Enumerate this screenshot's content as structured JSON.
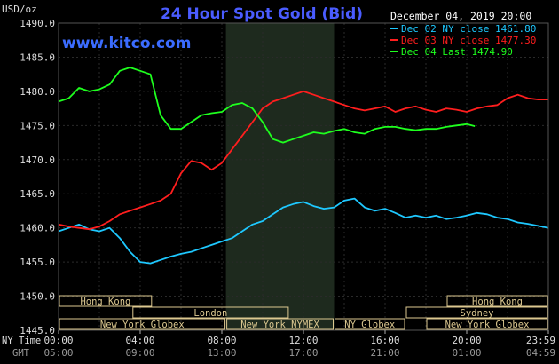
{
  "chart_data": {
    "type": "line",
    "title": "24 Hour Spot Gold (Bid)",
    "watermark": "www.kitco.com",
    "unit_label": "USD/oz",
    "date_label": "December 04, 2019 20:00",
    "ylim": [
      1445.0,
      1490.0
    ],
    "y_ticks": [
      "1490.0",
      "1485.0",
      "1480.0",
      "1475.0",
      "1470.0",
      "1465.0",
      "1460.0",
      "1455.0",
      "1450.0",
      "1445.0"
    ],
    "x_range_hours": [
      0,
      24
    ],
    "x_ticks": [
      {
        "h": 0,
        "ny": "00:00",
        "gmt": "05:00"
      },
      {
        "h": 4,
        "ny": "04:00",
        "gmt": "09:00"
      },
      {
        "h": 8,
        "ny": "08:00",
        "gmt": "13:00"
      },
      {
        "h": 12,
        "ny": "12:00",
        "gmt": "17:00"
      },
      {
        "h": 16,
        "ny": "16:00",
        "gmt": "21:00"
      },
      {
        "h": 20,
        "ny": "20:00",
        "gmt": "01:00"
      },
      {
        "h": 24,
        "ny": "23:59",
        "gmt": "04:59"
      }
    ],
    "x_row_labels": {
      "ny": "NY Time",
      "gmt": "GMT"
    },
    "shaded_session_hours": [
      8.2,
      13.5
    ],
    "market_sessions": [
      {
        "label": "Hong Kong",
        "start": 0,
        "end": 4.6,
        "row": 0
      },
      {
        "label": "London",
        "start": 3.6,
        "end": 11.3,
        "row": 1
      },
      {
        "label": "New York Globex",
        "start": 0,
        "end": 8.2,
        "row": 2
      },
      {
        "label": "New York NYMEX",
        "start": 8.2,
        "end": 13.5,
        "row": 2
      },
      {
        "label": "NY Globex",
        "start": 13.5,
        "end": 17.0,
        "row": 2
      },
      {
        "label": "Hong Kong",
        "start": 19.0,
        "end": 24,
        "row": 0
      },
      {
        "label": "Sydney",
        "start": 17.0,
        "end": 24,
        "row": 1
      },
      {
        "label": "New York Globex",
        "start": 18.0,
        "end": 24,
        "row": 2
      }
    ],
    "colors": {
      "background": "#000000",
      "grid": "#2a2a2a",
      "shade": "#1e2a1e",
      "axis_text": "#dddddd",
      "title": "#4a5cff",
      "watermark": "#3b6cff",
      "date": "#ffffff",
      "session_box": "#dcc890",
      "session_text": "#1a1a1a"
    },
    "series": [
      {
        "name": "Dec 02 NY close 1461.80",
        "color": "#1ec8ff",
        "x": [
          0,
          0.5,
          1.0,
          1.5,
          2.0,
          2.5,
          3.0,
          3.5,
          4.0,
          4.5,
          5.0,
          5.5,
          6.0,
          6.5,
          7.0,
          7.5,
          8.0,
          8.5,
          9.0,
          9.5,
          10.0,
          10.5,
          11.0,
          11.5,
          12.0,
          12.5,
          13.0,
          13.5,
          14.0,
          14.5,
          15.0,
          15.5,
          16.0,
          16.5,
          17.0,
          17.5,
          18.0,
          18.5,
          19.0,
          19.5,
          20.0,
          20.5,
          21.0,
          21.5,
          22.0,
          22.5,
          23.0,
          23.5,
          24.0
        ],
        "y": [
          1459.5,
          1460.0,
          1460.5,
          1459.8,
          1459.5,
          1460.0,
          1458.5,
          1456.5,
          1455.0,
          1454.8,
          1455.3,
          1455.8,
          1456.2,
          1456.5,
          1457.0,
          1457.5,
          1458.0,
          1458.5,
          1459.5,
          1460.5,
          1461.0,
          1462.0,
          1463.0,
          1463.5,
          1463.8,
          1463.2,
          1462.8,
          1463.0,
          1464.0,
          1464.3,
          1463.0,
          1462.5,
          1462.8,
          1462.2,
          1461.5,
          1461.8,
          1461.5,
          1461.8,
          1461.3,
          1461.5,
          1461.8,
          1462.2,
          1462.0,
          1461.5,
          1461.3,
          1460.8,
          1460.6,
          1460.3,
          1460.0
        ]
      },
      {
        "name": "Dec 03 NY close 1477.30",
        "color": "#ff1e1e",
        "x": [
          0,
          0.5,
          1.0,
          1.5,
          2.0,
          2.5,
          3.0,
          3.5,
          4.0,
          4.5,
          5.0,
          5.5,
          6.0,
          6.5,
          7.0,
          7.5,
          8.0,
          8.5,
          9.0,
          9.5,
          10.0,
          10.5,
          11.0,
          11.5,
          12.0,
          12.5,
          13.0,
          13.5,
          14.0,
          14.5,
          15.0,
          15.5,
          16.0,
          16.5,
          17.0,
          17.5,
          18.0,
          18.5,
          19.0,
          19.5,
          20.0,
          20.5,
          21.0,
          21.5,
          22.0,
          22.5,
          23.0,
          23.5,
          24.0
        ],
        "y": [
          1460.5,
          1460.2,
          1460.0,
          1459.8,
          1460.2,
          1461.0,
          1462.0,
          1462.5,
          1463.0,
          1463.5,
          1464.0,
          1465.0,
          1468.0,
          1469.8,
          1469.5,
          1468.5,
          1469.5,
          1471.5,
          1473.5,
          1475.5,
          1477.5,
          1478.5,
          1479.0,
          1479.5,
          1480.0,
          1479.5,
          1479.0,
          1478.5,
          1478.0,
          1477.5,
          1477.2,
          1477.5,
          1477.8,
          1477.0,
          1477.5,
          1477.8,
          1477.3,
          1477.0,
          1477.5,
          1477.3,
          1477.0,
          1477.5,
          1477.8,
          1478.0,
          1479.0,
          1479.5,
          1479.0,
          1478.8,
          1478.8
        ]
      },
      {
        "name": "Dec 04 Last 1474.90",
        "color": "#1eff1e",
        "x": [
          0,
          0.5,
          1.0,
          1.5,
          2.0,
          2.5,
          3.0,
          3.5,
          4.0,
          4.5,
          5.0,
          5.5,
          6.0,
          6.5,
          7.0,
          7.5,
          8.0,
          8.5,
          9.0,
          9.5,
          10.0,
          10.5,
          11.0,
          11.5,
          12.0,
          12.5,
          13.0,
          13.5,
          14.0,
          14.5,
          15.0,
          15.5,
          16.0,
          16.5,
          17.0,
          17.5,
          18.0,
          18.5,
          19.0,
          19.5,
          20.0,
          20.4
        ],
        "y": [
          1478.5,
          1479.0,
          1480.5,
          1480.0,
          1480.3,
          1481.0,
          1483.0,
          1483.5,
          1483.0,
          1482.5,
          1476.5,
          1474.5,
          1474.5,
          1475.5,
          1476.5,
          1476.8,
          1477.0,
          1478.0,
          1478.3,
          1477.5,
          1475.5,
          1473.0,
          1472.5,
          1473.0,
          1473.5,
          1474.0,
          1473.8,
          1474.2,
          1474.5,
          1474.0,
          1473.8,
          1474.5,
          1474.8,
          1474.8,
          1474.5,
          1474.3,
          1474.5,
          1474.5,
          1474.8,
          1475.0,
          1475.2,
          1474.9
        ]
      }
    ]
  }
}
